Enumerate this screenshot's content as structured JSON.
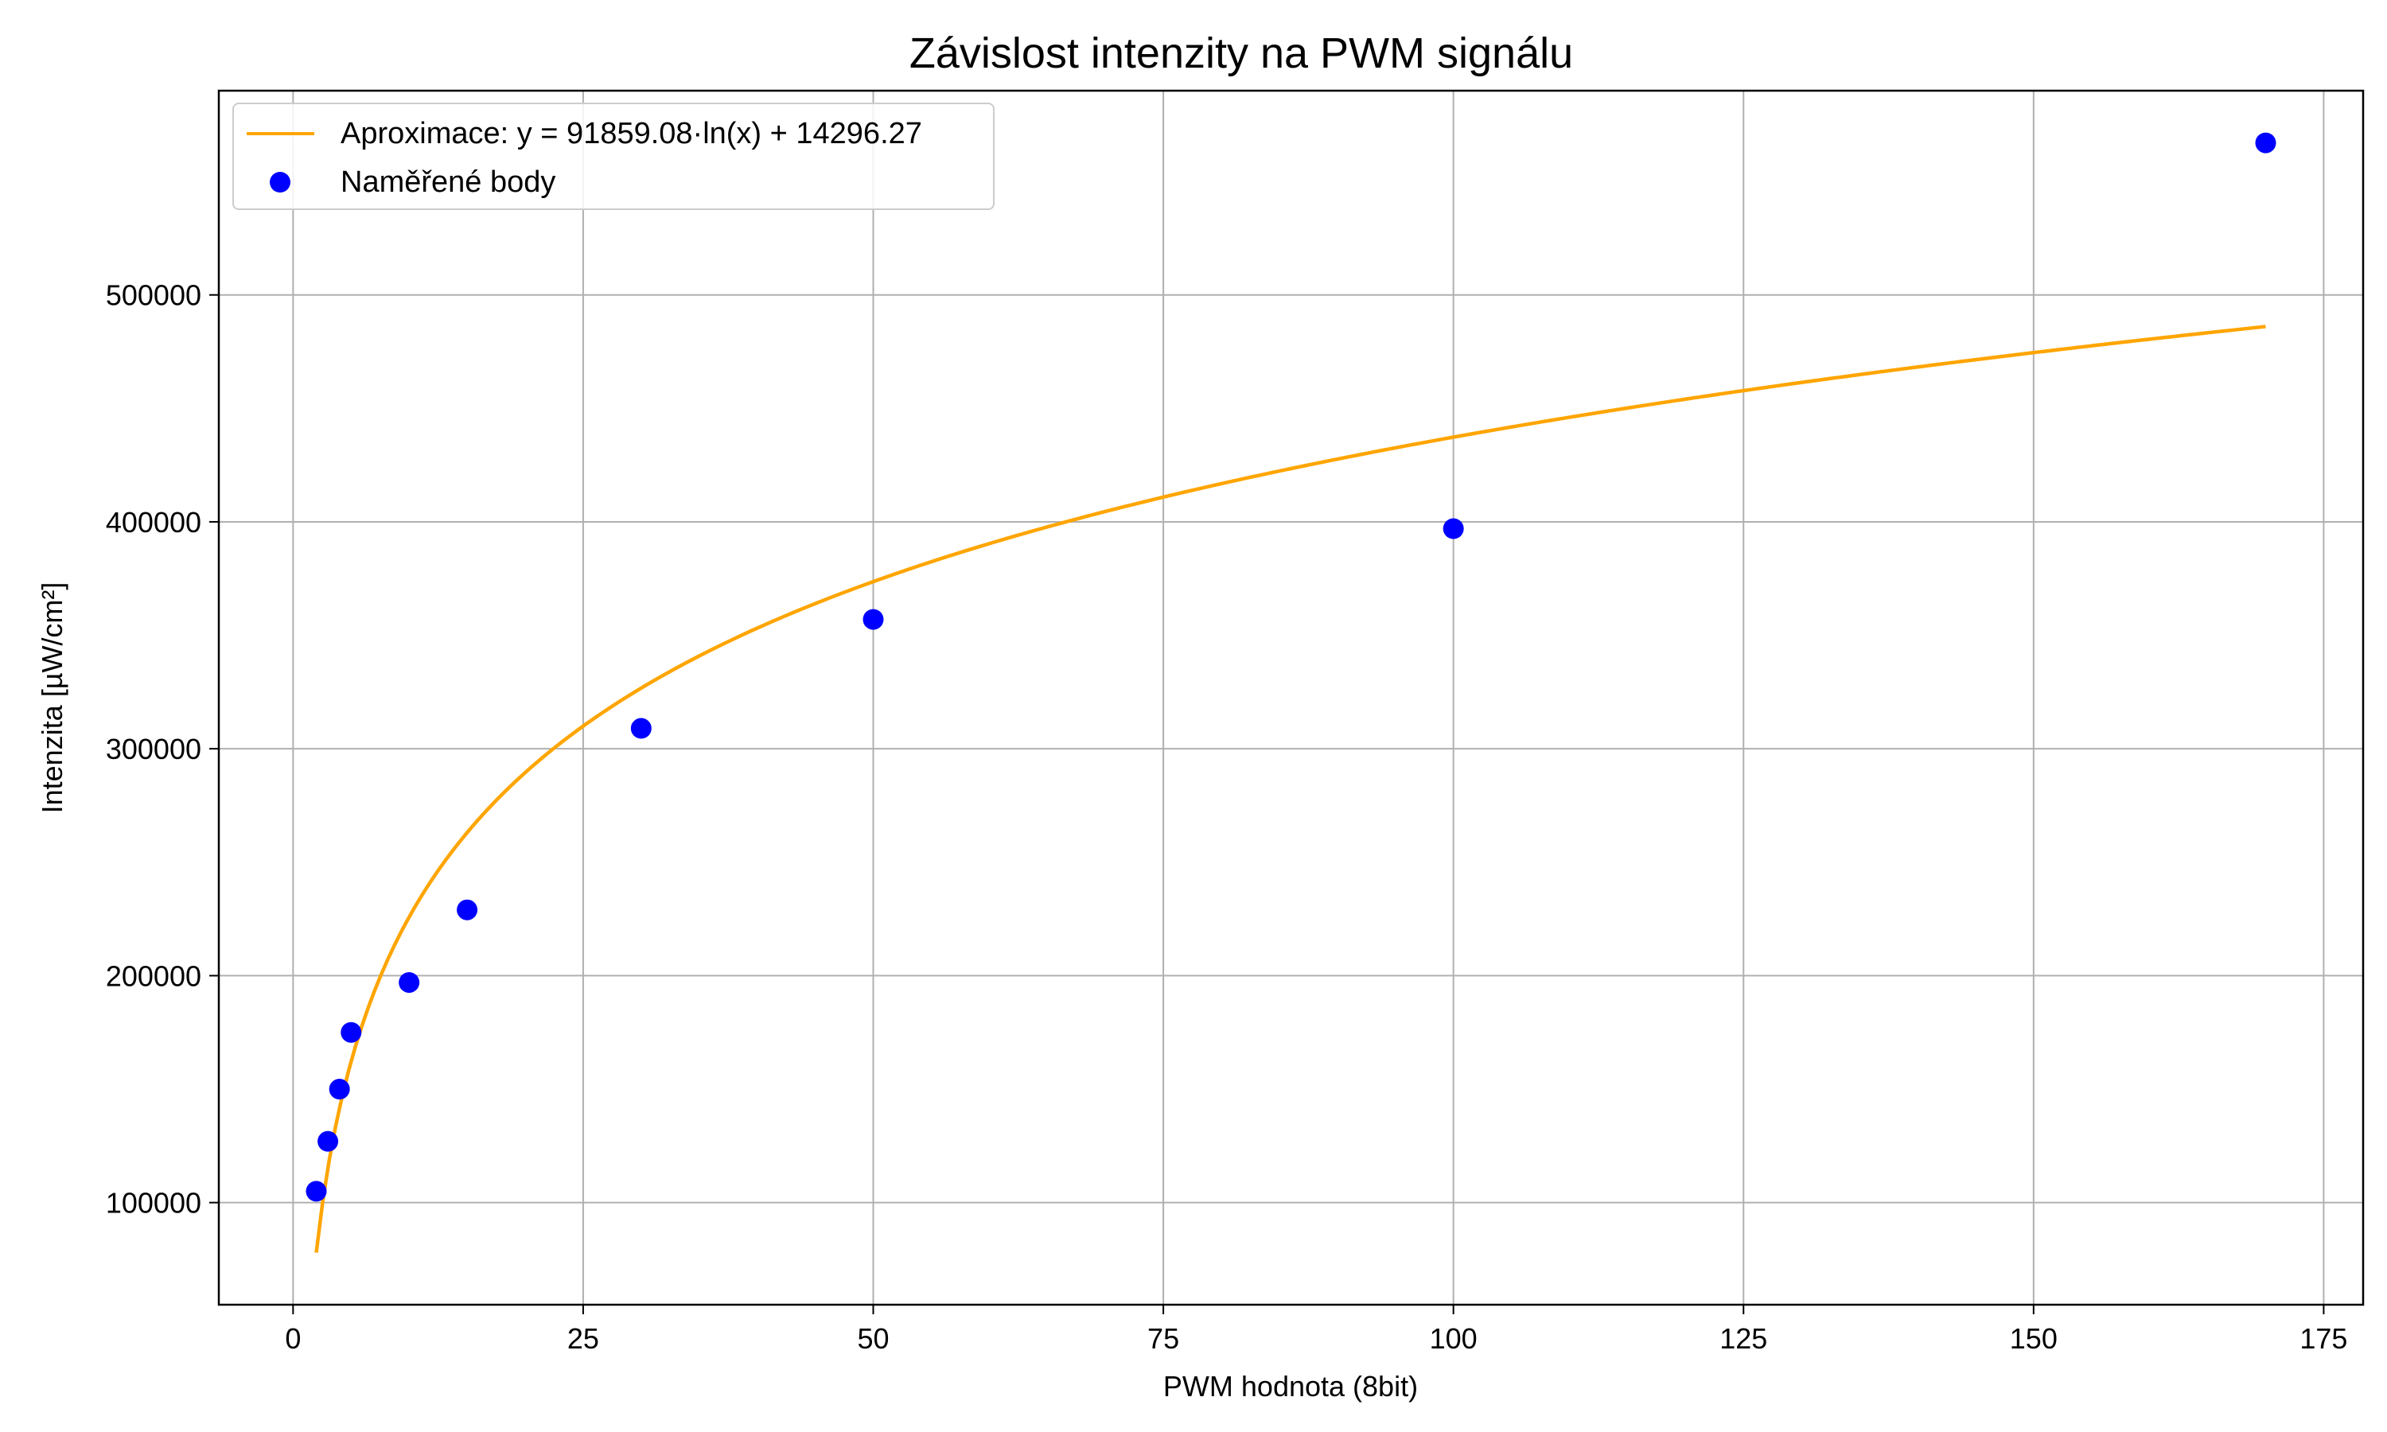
{
  "chart_data": {
    "type": "scatter",
    "title": "Závislost intenzity na PWM signálu",
    "xlabel": "PWM hodnota (8bit)",
    "ylabel": "Intenzita [µW/cm²]",
    "xlim": [
      -6.4,
      178.4
    ],
    "ylim": [
      55000,
      590000
    ],
    "x_ticks": [
      0,
      25,
      50,
      75,
      100,
      125,
      150,
      175
    ],
    "y_ticks": [
      100000,
      200000,
      300000,
      400000,
      500000
    ],
    "grid": true,
    "legend_position": "top-left",
    "series": [
      {
        "name": "Naměřené body",
        "kind": "scatter",
        "color": "#0000ff",
        "x": [
          2,
          3,
          4,
          5,
          10,
          15,
          30,
          50,
          100,
          170
        ],
        "y": [
          105000,
          127000,
          150000,
          175000,
          197000,
          229000,
          309000,
          357000,
          397000,
          567000
        ]
      },
      {
        "name": "Aproximace: y = 91859.08·ln(x) + 14296.27",
        "kind": "line",
        "color": "#ffa500",
        "function": "log",
        "a": 91859.08,
        "b": 14296.27,
        "x_range": [
          2,
          170
        ]
      }
    ]
  }
}
